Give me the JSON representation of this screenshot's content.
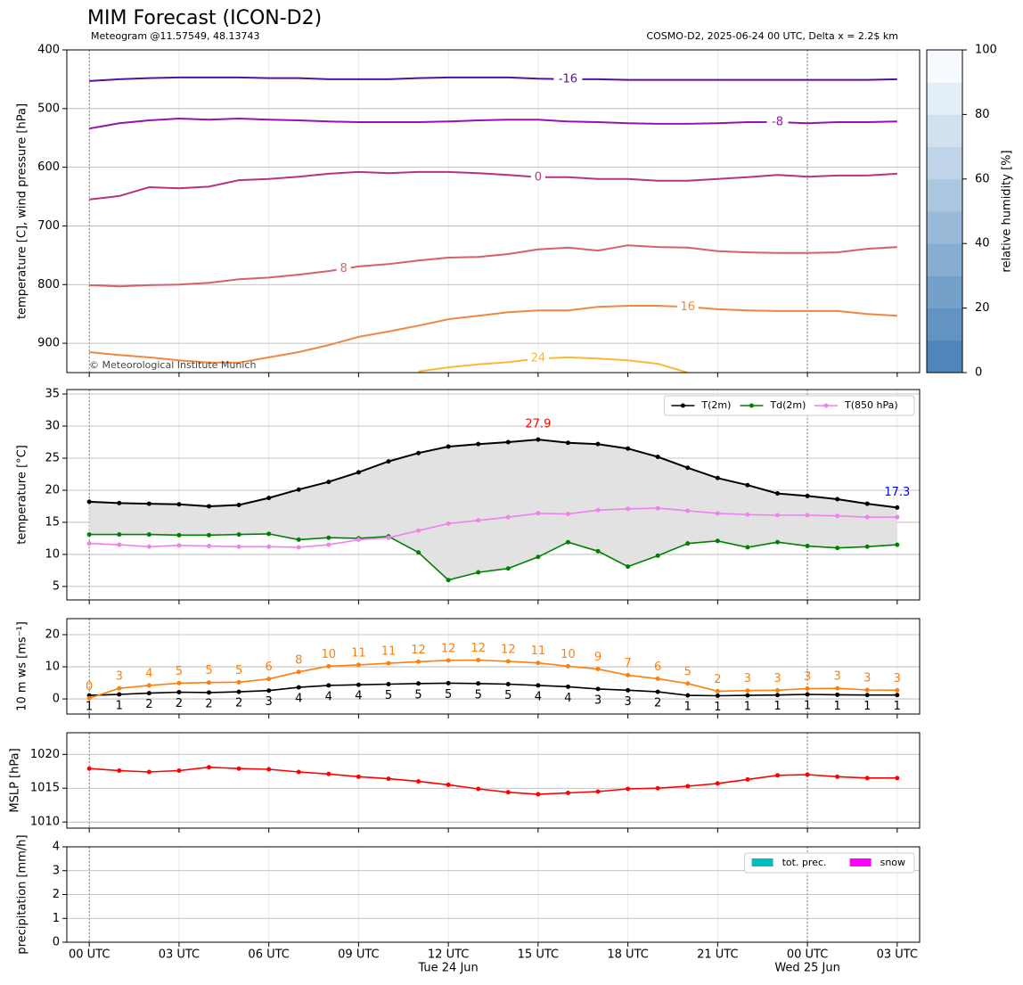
{
  "chart_data": [
    {
      "type": "contour",
      "title": "MIM Forecast (ICON-D2)",
      "subtitle": "Meteogram @11.57549, 48.13743",
      "subtitle_right": "COSMO-D2, 2025-06-24 00 UTC, Delta x = 2.2$ km",
      "copyright": "© Meteorological Institute Munich",
      "ylabel": "temperature [C], wind pressure [hPa]",
      "x": [
        0,
        1,
        2,
        3,
        4,
        5,
        6,
        7,
        8,
        9,
        10,
        11,
        12,
        13,
        14,
        15,
        16,
        17,
        18,
        19,
        20,
        21,
        22,
        23,
        24,
        25,
        26,
        27
      ],
      "xlim": [
        -0.75,
        27.75
      ],
      "ylim": [
        400,
        950
      ],
      "y_inverted": true,
      "yticks": [
        400,
        500,
        600,
        700,
        800,
        900
      ],
      "grid": true,
      "xgrid": true,
      "day_lines": [
        0,
        24
      ],
      "series": [
        {
          "name": "-16",
          "color": "#5a0fa0",
          "values": [
            453,
            450,
            448,
            447,
            447,
            447,
            448,
            448,
            450,
            450,
            450,
            448,
            447,
            447,
            447,
            449,
            450,
            450,
            451,
            451,
            451,
            451,
            451,
            451,
            451,
            451,
            451,
            450
          ]
        },
        {
          "name": "-8",
          "color": "#9612b0",
          "values": [
            534,
            525,
            520,
            517,
            519,
            517,
            519,
            520,
            522,
            523,
            523,
            523,
            522,
            520,
            519,
            519,
            522,
            523,
            525,
            526,
            526,
            525,
            523,
            523,
            525,
            523,
            523,
            522
          ]
        },
        {
          "name": "0",
          "color": "#b8347f",
          "values": [
            655,
            649,
            634,
            636,
            633,
            622,
            620,
            616,
            611,
            608,
            610,
            608,
            608,
            610,
            613,
            617,
            617,
            620,
            620,
            623,
            623,
            620,
            617,
            613,
            616,
            614,
            614,
            611
          ]
        },
        {
          "name": "8",
          "color": "#d95f6a",
          "values": [
            801,
            803,
            801,
            800,
            797,
            791,
            788,
            783,
            777,
            769,
            765,
            759,
            754,
            753,
            748,
            740,
            737,
            742,
            733,
            736,
            737,
            743,
            745,
            746,
            746,
            745,
            739,
            736
          ]
        },
        {
          "name": "16",
          "color": "#f08840",
          "values": [
            915,
            920,
            924,
            929,
            933,
            933,
            924,
            915,
            903,
            889,
            880,
            870,
            859,
            853,
            847,
            844,
            844,
            838,
            836,
            836,
            838,
            842,
            844,
            845,
            845,
            845,
            850,
            853
          ]
        },
        {
          "name": "24",
          "color": "#fbb830",
          "values": [
            null,
            null,
            null,
            null,
            null,
            null,
            null,
            null,
            null,
            null,
            null,
            948,
            941,
            936,
            932,
            926,
            924,
            926,
            929,
            935,
            950,
            null,
            null,
            null,
            null,
            null,
            null,
            null
          ]
        }
      ],
      "colorbar": {
        "label": "relative humidity [%]",
        "lim": [
          0,
          100
        ],
        "ticks": [
          0,
          20,
          40,
          60,
          80,
          100
        ],
        "colors": [
          "#4f86ba",
          "#f7fbff"
        ]
      }
    },
    {
      "type": "line",
      "ylabel": "temperature [°C]",
      "x": [
        0,
        1,
        2,
        3,
        4,
        5,
        6,
        7,
        8,
        9,
        10,
        11,
        12,
        13,
        14,
        15,
        16,
        17,
        18,
        19,
        20,
        21,
        22,
        23,
        24,
        25,
        26,
        27
      ],
      "xlim": [
        -0.75,
        27.75
      ],
      "ylim": [
        2.9,
        35.7
      ],
      "yticks": [
        5,
        10,
        15,
        20,
        25,
        30,
        35
      ],
      "grid": true,
      "xgrid": true,
      "legend": "upper right",
      "fill_between": {
        "series": [
          0,
          1
        ],
        "color": "#e2e2e2"
      },
      "series": [
        {
          "name": "T(2m)",
          "color": "#000000",
          "values": [
            18.2,
            18.0,
            17.9,
            17.8,
            17.5,
            17.7,
            18.8,
            20.1,
            21.3,
            22.8,
            24.5,
            25.8,
            26.8,
            27.2,
            27.5,
            27.9,
            27.4,
            27.2,
            26.5,
            25.2,
            23.5,
            21.9,
            20.8,
            19.5,
            19.1,
            18.6,
            17.9,
            17.3
          ]
        },
        {
          "name": "Td(2m)",
          "color": "#008000",
          "values": [
            13.1,
            13.1,
            13.1,
            13.0,
            13.0,
            13.1,
            13.2,
            12.3,
            12.6,
            12.5,
            12.8,
            10.3,
            6.0,
            7.2,
            7.8,
            9.6,
            11.9,
            10.5,
            8.1,
            9.8,
            11.7,
            12.1,
            11.1,
            11.9,
            11.3,
            11.0,
            11.2,
            11.5
          ]
        },
        {
          "name": "T(850 hPa)",
          "color": "#ee82ee",
          "values": [
            11.7,
            11.5,
            11.2,
            11.4,
            11.3,
            11.2,
            11.2,
            11.1,
            11.5,
            12.3,
            12.6,
            13.7,
            14.8,
            15.3,
            15.8,
            16.4,
            16.3,
            16.9,
            17.1,
            17.2,
            16.8,
            16.4,
            16.2,
            16.1,
            16.1,
            16.0,
            15.8,
            15.8
          ]
        }
      ],
      "annotations": [
        {
          "x": 15,
          "value": 27.9,
          "color": "#ff0000"
        },
        {
          "x": 27,
          "value": 17.3,
          "color": "#0000ff"
        }
      ]
    },
    {
      "type": "line",
      "ylabel": "10 m ws [ms⁻¹]",
      "x": [
        0,
        1,
        2,
        3,
        4,
        5,
        6,
        7,
        8,
        9,
        10,
        11,
        12,
        13,
        14,
        15,
        16,
        17,
        18,
        19,
        20,
        21,
        22,
        23,
        24,
        25,
        26,
        27
      ],
      "xlim": [
        -0.75,
        27.75
      ],
      "ylim": [
        -4.7,
        25
      ],
      "yticks": [
        0,
        10,
        20
      ],
      "grid": true,
      "xgrid": true,
      "series": [
        {
          "color": "#000000",
          "label_position": "below",
          "values": [
            1.1,
            1.4,
            1.8,
            2.1,
            2.0,
            2.2,
            2.6,
            3.6,
            4.2,
            4.4,
            4.6,
            4.8,
            4.9,
            4.8,
            4.6,
            4.2,
            3.8,
            3.1,
            2.7,
            2.2,
            1.1,
            1.0,
            1.1,
            1.2,
            1.4,
            1.3,
            1.2,
            1.2
          ],
          "value_labels": [
            "1",
            "1",
            "2",
            "2",
            "2",
            "2",
            "3",
            "4",
            "4",
            "4",
            "5",
            "5",
            "5",
            "5",
            "5",
            "4",
            "4",
            "3",
            "3",
            "2",
            "1",
            "1",
            "1",
            "1",
            "1",
            "1",
            "1",
            "1"
          ]
        },
        {
          "color": "#ff7f0e",
          "label_position": "above",
          "values": [
            0.2,
            3.3,
            4.2,
            4.9,
            5.1,
            5.2,
            6.2,
            8.4,
            10.2,
            10.6,
            11.1,
            11.6,
            12.0,
            12.1,
            11.7,
            11.2,
            10.2,
            9.3,
            7.4,
            6.3,
            4.8,
            2.4,
            2.6,
            2.7,
            3.2,
            3.3,
            2.8,
            2.7
          ],
          "value_labels": [
            "0",
            "3",
            "4",
            "5",
            "5",
            "5",
            "6",
            "8",
            "10",
            "11",
            "11",
            "12",
            "12",
            "12",
            "12",
            "11",
            "10",
            "9",
            "7",
            "6",
            "5",
            "2",
            "3",
            "3",
            "3",
            "3",
            "3",
            "3"
          ]
        }
      ]
    },
    {
      "type": "line",
      "ylabel": "MSLP [hPa]",
      "x": [
        0,
        1,
        2,
        3,
        4,
        5,
        6,
        7,
        8,
        9,
        10,
        11,
        12,
        13,
        14,
        15,
        16,
        17,
        18,
        19,
        20,
        21,
        22,
        23,
        24,
        25,
        26,
        27
      ],
      "xlim": [
        -0.75,
        27.75
      ],
      "ylim": [
        1009.1,
        1023.2
      ],
      "yticks": [
        1010,
        1015,
        1020
      ],
      "grid": true,
      "xgrid": true,
      "series": [
        {
          "color": "#ff0000",
          "values": [
            1017.9,
            1017.6,
            1017.4,
            1017.6,
            1018.1,
            1017.9,
            1017.8,
            1017.4,
            1017.1,
            1016.7,
            1016.4,
            1016.0,
            1015.5,
            1014.9,
            1014.4,
            1014.1,
            1014.3,
            1014.5,
            1014.9,
            1015.0,
            1015.3,
            1015.7,
            1016.3,
            1016.9,
            1017.0,
            1016.7,
            1016.5,
            1016.5
          ]
        }
      ]
    },
    {
      "type": "bar",
      "ylabel": "precipitation [mm/h]",
      "x": [
        0,
        1,
        2,
        3,
        4,
        5,
        6,
        7,
        8,
        9,
        10,
        11,
        12,
        13,
        14,
        15,
        16,
        17,
        18,
        19,
        20,
        21,
        22,
        23,
        24,
        25,
        26,
        27
      ],
      "xlim": [
        -0.75,
        27.75
      ],
      "ylim": [
        0,
        4
      ],
      "yticks": [
        0,
        1,
        2,
        3,
        4
      ],
      "grid": true,
      "xgrid": true,
      "legend": "upper right",
      "xticks": [
        {
          "value": 0,
          "label": "00 UTC"
        },
        {
          "value": 3,
          "label": "03 UTC"
        },
        {
          "value": 6,
          "label": "06 UTC"
        },
        {
          "value": 9,
          "label": "09 UTC"
        },
        {
          "value": 12,
          "label": "12 UTC"
        },
        {
          "value": 15,
          "label": "15 UTC"
        },
        {
          "value": 18,
          "label": "18 UTC"
        },
        {
          "value": 21,
          "label": "21 UTC"
        },
        {
          "value": 24,
          "label": "00 UTC"
        },
        {
          "value": 27,
          "label": "03 UTC"
        }
      ],
      "date_labels": [
        {
          "value": 12,
          "label": "Tue 24 Jun"
        },
        {
          "value": 24,
          "label": "Wed 25 Jun"
        }
      ],
      "series": [
        {
          "name": "tot. prec.",
          "color": "#00bfbf",
          "values": [
            0,
            0,
            0,
            0,
            0,
            0,
            0,
            0,
            0,
            0,
            0,
            0,
            0,
            0,
            0,
            0,
            0,
            0,
            0,
            0,
            0,
            0,
            0,
            0,
            0,
            0,
            0,
            0
          ]
        },
        {
          "name": "snow",
          "color": "#ff00ff",
          "values": [
            0,
            0,
            0,
            0,
            0,
            0,
            0,
            0,
            0,
            0,
            0,
            0,
            0,
            0,
            0,
            0,
            0,
            0,
            0,
            0,
            0,
            0,
            0,
            0,
            0,
            0,
            0,
            0
          ]
        }
      ]
    }
  ]
}
